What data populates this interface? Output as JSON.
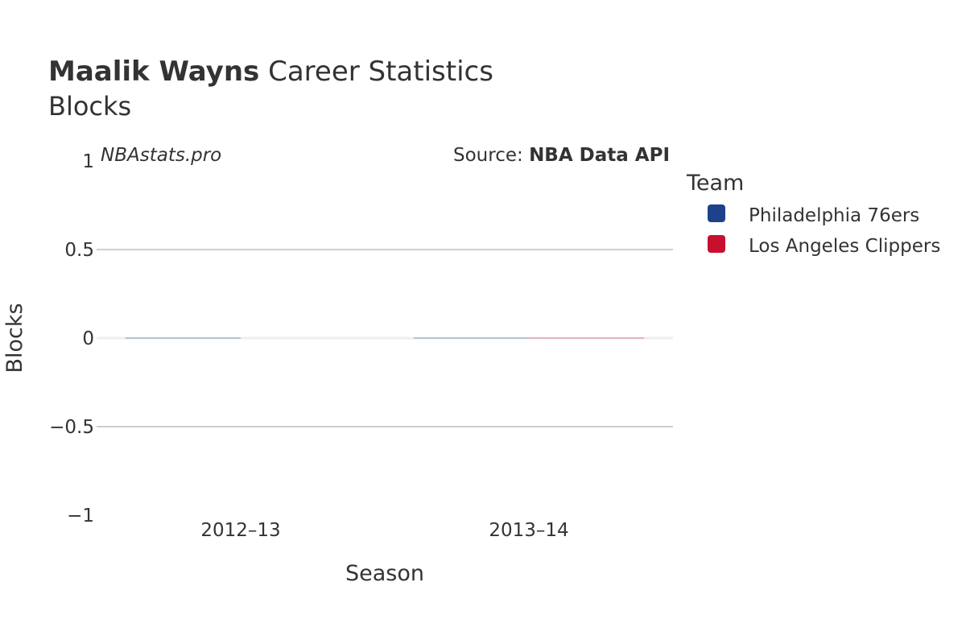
{
  "header": {
    "player_name": "Maalik Wayns",
    "title_rest": " Career Statistics",
    "subtitle": "Blocks"
  },
  "credits": {
    "watermark": "NBAstats.pro",
    "source_prefix": "Source: ",
    "source_name": "NBA Data API"
  },
  "legend": {
    "title": "Team",
    "items": [
      {
        "label": "Philadelphia 76ers",
        "color": "#1d428a"
      },
      {
        "label": "Los Angeles Clippers",
        "color": "#c8102e"
      }
    ]
  },
  "chart_data": {
    "type": "bar",
    "categories": [
      "2012–13",
      "2013–14"
    ],
    "series": [
      {
        "name": "Philadelphia 76ers",
        "color": "#1d428a",
        "values": [
          0,
          0
        ]
      },
      {
        "name": "Los Angeles Clippers",
        "color": "#c8102e",
        "values": [
          null,
          0
        ]
      }
    ],
    "xlabel": "Season",
    "ylabel": "Blocks",
    "ylim": [
      -1,
      1
    ],
    "yticks": [
      1,
      0.5,
      0,
      -0.5,
      -1
    ],
    "ytick_labels": [
      "1",
      "0.5",
      "0",
      "−0.5",
      "−1"
    ],
    "grid": true,
    "legend_position": "right"
  }
}
